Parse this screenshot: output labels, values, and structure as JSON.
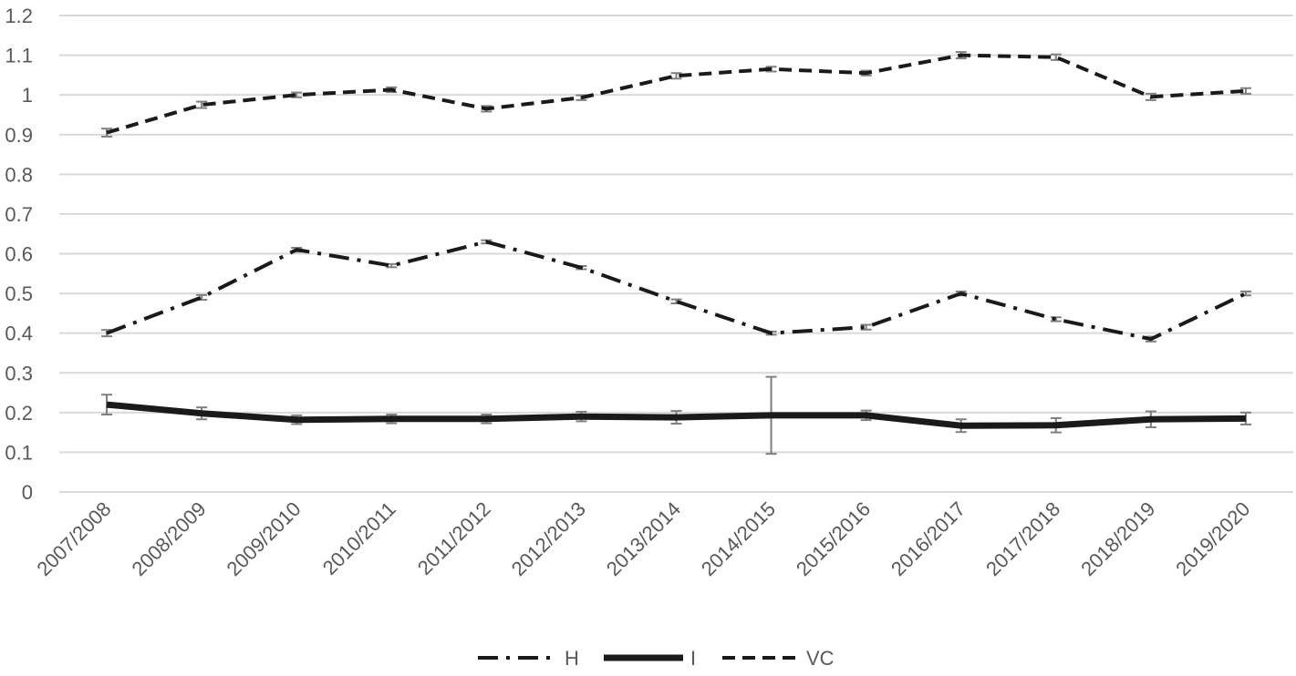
{
  "chart_data": {
    "type": "line",
    "categories": [
      "2007/2008",
      "2008/2009",
      "2009/2010",
      "2010/2011",
      "2011/2012",
      "2012/2013",
      "2013/2014",
      "2014/2015",
      "2015/2016",
      "2016/2017",
      "2017/2018",
      "2018/2019",
      "2019/2020"
    ],
    "ylim": [
      0,
      1.2
    ],
    "yticks": [
      "0",
      "0.1",
      "0.2",
      "0.3",
      "0.4",
      "0.5",
      "0.6",
      "0.7",
      "0.8",
      "0.9",
      "1",
      "1.1",
      "1.2"
    ],
    "grid": true,
    "legend_position": "bottom",
    "series": [
      {
        "name": "H",
        "dash": "dash-dot",
        "color": "#1a1a1a",
        "values": [
          0.4,
          0.49,
          0.61,
          0.57,
          0.63,
          0.565,
          0.48,
          0.4,
          0.415,
          0.5,
          0.435,
          0.385,
          0.5
        ],
        "errors": [
          0.008,
          0.006,
          0.005,
          0.004,
          0.004,
          0.004,
          0.005,
          0.004,
          0.006,
          0.005,
          0.005,
          0.006,
          0.005
        ]
      },
      {
        "name": "I",
        "dash": "solid",
        "color": "#1a1a1a",
        "values": [
          0.22,
          0.198,
          0.182,
          0.184,
          0.184,
          0.19,
          0.188,
          0.193,
          0.193,
          0.167,
          0.168,
          0.183,
          0.185
        ],
        "errors": [
          0.025,
          0.015,
          0.011,
          0.011,
          0.011,
          0.012,
          0.016,
          0.097,
          0.012,
          0.016,
          0.018,
          0.02,
          0.015
        ]
      },
      {
        "name": "VC",
        "dash": "dashed",
        "color": "#1a1a1a",
        "values": [
          0.905,
          0.975,
          1.0,
          1.013,
          0.965,
          0.993,
          1.048,
          1.065,
          1.055,
          1.1,
          1.095,
          0.995,
          1.01
        ],
        "errors": [
          0.01,
          0.008,
          0.006,
          0.006,
          0.007,
          0.006,
          0.007,
          0.006,
          0.006,
          0.008,
          0.007,
          0.008,
          0.007
        ]
      }
    ]
  }
}
